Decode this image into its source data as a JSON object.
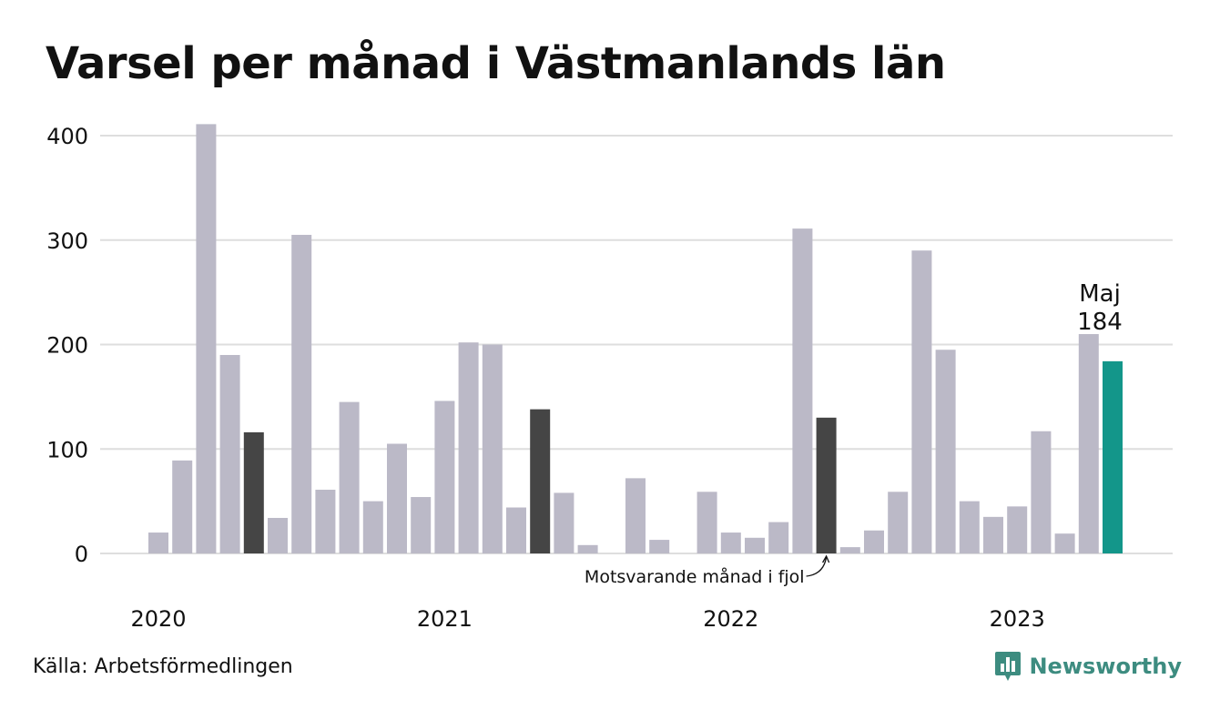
{
  "title": "Varsel per månad i Västmanlands län",
  "source": "Källa: Arbetsförmedlingen",
  "brand": "Newsworthy",
  "brand_icon": "bar-chart-speech-bubble-icon",
  "colors": {
    "default_bar": "#bbb9c7",
    "comparison_bar": "#454545",
    "highlight_bar": "#13968a",
    "grid": "#dedede",
    "brand": "#3d8c80"
  },
  "chart_data": {
    "type": "bar",
    "title": "Varsel per månad i Västmanlands län",
    "xlabel": "",
    "ylabel": "",
    "ylim": [
      0,
      420
    ],
    "y_ticks": [
      0,
      100,
      200,
      300,
      400
    ],
    "grid": true,
    "x_tick_labels": [
      {
        "label": "2020",
        "index": 0
      },
      {
        "label": "2021",
        "index": 12
      },
      {
        "label": "2022",
        "index": 24
      },
      {
        "label": "2023",
        "index": 36
      }
    ],
    "start_month": "2020-01",
    "values": [
      20,
      89,
      411,
      190,
      116,
      34,
      305,
      61,
      145,
      50,
      105,
      54,
      146,
      202,
      200,
      44,
      138,
      58,
      8,
      0,
      72,
      13,
      0,
      59,
      20,
      15,
      30,
      311,
      130,
      6,
      22,
      59,
      290,
      195,
      50,
      35,
      45,
      117,
      19,
      210,
      184
    ],
    "comparison_indices": [
      4,
      16,
      28
    ],
    "highlight_index": 40,
    "highlight_label": {
      "month": "Maj",
      "value": "184"
    },
    "annotation": "Motsvarande månad i fjol"
  }
}
